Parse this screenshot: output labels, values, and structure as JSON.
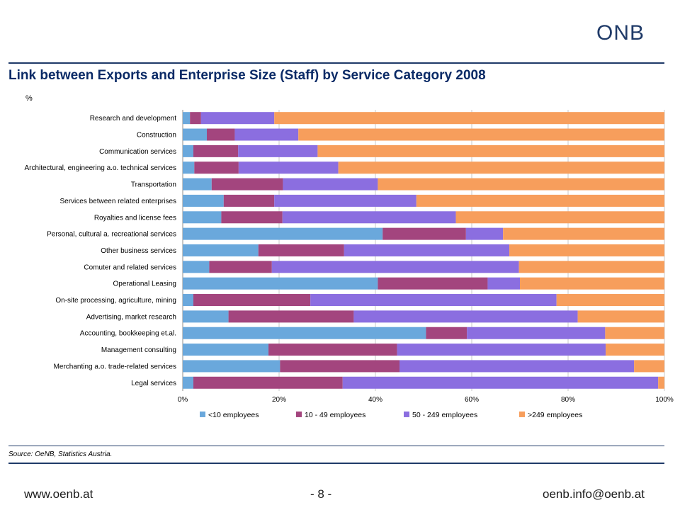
{
  "header": {
    "logo_text": "ONB"
  },
  "page_title": "Link between Exports and Enterprise Size (Staff) by Service Category 2008",
  "unit_label": "%",
  "source_text": "Source: OeNB, Statistics Austria.",
  "footer": {
    "left": "www.oenb.at",
    "center": "- 8 -",
    "right": "oenb.info@oenb.at"
  },
  "colors": {
    "brand": "#1f3a68",
    "title": "#0a2a66"
  },
  "chart_data": {
    "type": "bar",
    "orientation": "horizontal",
    "stacked": "percent",
    "title": "Link between Exports and Enterprise Size (Staff) by Service Category 2008",
    "ylabel": "%",
    "xlim": [
      0,
      100
    ],
    "x_ticks": [
      "0%",
      "20%",
      "40%",
      "60%",
      "80%",
      "100%"
    ],
    "grid": true,
    "legend_position": "bottom",
    "categories": [
      "Research and development",
      "Construction",
      "Communication services",
      "Architectural, engineering a.o. technical services",
      "Transportation",
      "Services between related enterprises",
      "Royalties and license fees",
      "Personal, cultural a. recreational services",
      "Other business services",
      "Comuter and related services",
      "Operational Leasing",
      "On-site processing, agriculture, mining",
      "Advertising, market research",
      "Accounting, bookkeeping et.al.",
      "Management consulting",
      "Merchanting a.o. trade-related services",
      "Legal services"
    ],
    "series": [
      {
        "name": "<10 employees",
        "color": "#6aa8dc",
        "values": [
          1.5,
          5.0,
          2.2,
          2.4,
          6.0,
          8.5,
          8.0,
          41.5,
          15.7,
          5.5,
          40.5,
          2.2,
          9.5,
          50.5,
          17.8,
          20.2,
          2.2
        ]
      },
      {
        "name": "10 - 49 employees",
        "color": "#a3457e",
        "values": [
          2.3,
          5.8,
          9.3,
          9.2,
          14.8,
          10.5,
          12.7,
          17.3,
          17.8,
          13.0,
          22.8,
          24.3,
          26.0,
          8.5,
          26.7,
          24.8,
          31.0
        ]
      },
      {
        "name": "50 - 249 employees",
        "color": "#8b6ee0",
        "values": [
          15.2,
          13.2,
          16.5,
          20.7,
          19.7,
          29.5,
          36.0,
          7.7,
          34.3,
          51.3,
          6.7,
          51.1,
          46.5,
          28.7,
          43.3,
          48.7,
          65.5
        ]
      },
      {
        "name": ">249 employees",
        "color": "#f79e5c",
        "values": [
          81.0,
          76.0,
          72.0,
          67.7,
          59.5,
          51.5,
          43.3,
          33.5,
          32.2,
          30.2,
          30.0,
          22.4,
          18.0,
          12.3,
          12.2,
          6.3,
          1.3
        ]
      }
    ]
  }
}
